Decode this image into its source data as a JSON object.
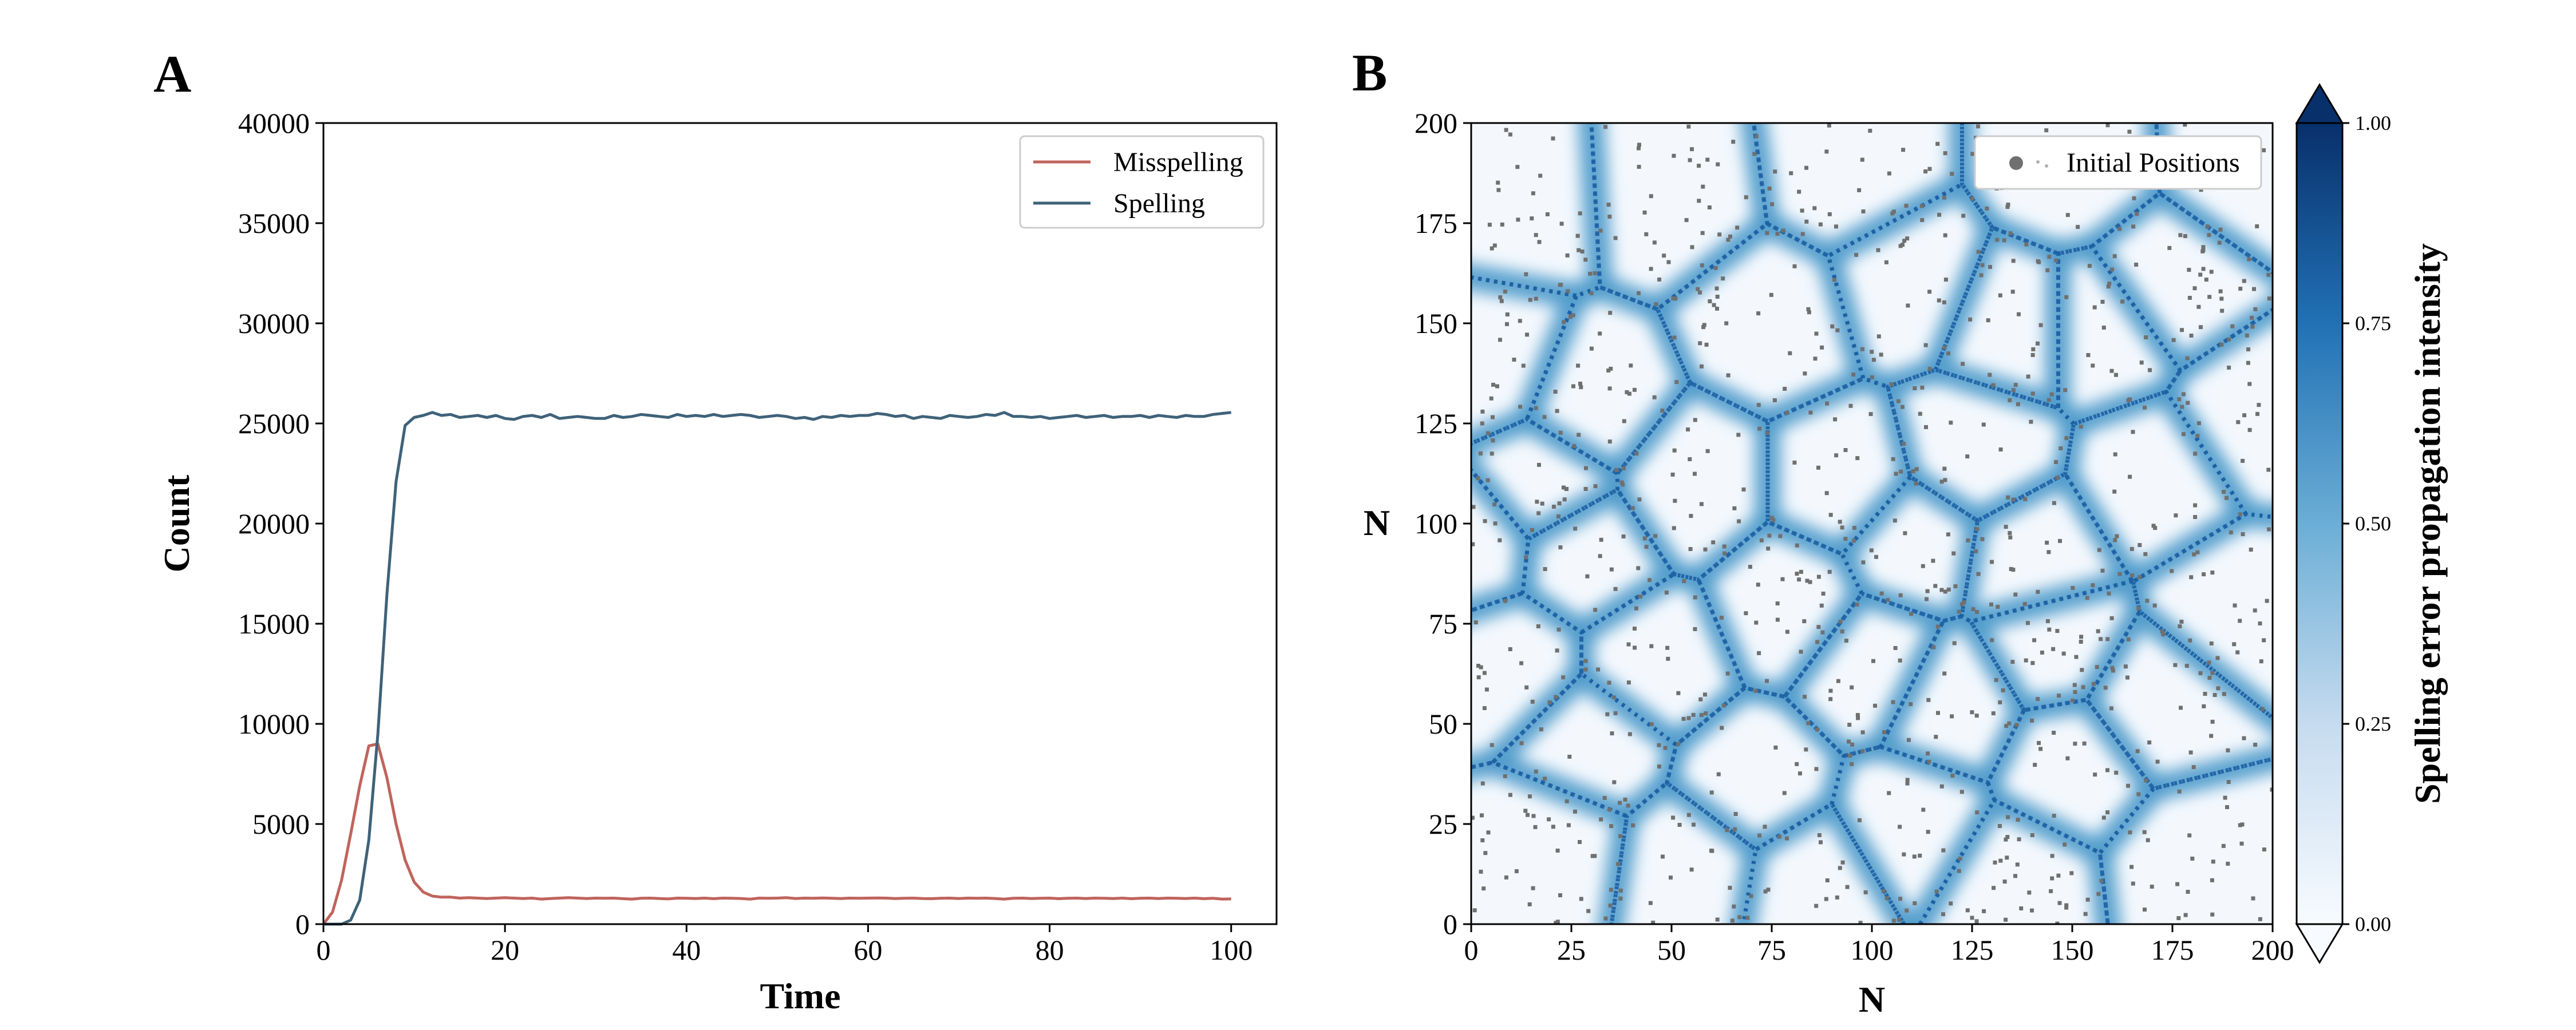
{
  "panels": {
    "a_label": "A",
    "b_label": "B"
  },
  "chart_data": [
    {
      "type": "line",
      "panel": "A",
      "xlabel": "Time",
      "ylabel": "Count",
      "xlim": [
        0,
        105
      ],
      "ylim": [
        0,
        40000
      ],
      "xticks": [
        0,
        20,
        40,
        60,
        80,
        100
      ],
      "yticks": [
        0,
        5000,
        10000,
        15000,
        20000,
        25000,
        30000,
        35000,
        40000
      ],
      "legend": "top-right",
      "grid": false,
      "x": [
        0,
        1,
        2,
        3,
        4,
        5,
        6,
        7,
        8,
        9,
        10,
        11,
        12,
        13,
        14,
        15,
        16,
        17,
        18,
        19,
        20,
        21,
        22,
        23,
        24,
        25,
        26,
        27,
        28,
        29,
        30,
        31,
        32,
        33,
        34,
        35,
        36,
        37,
        38,
        39,
        40,
        41,
        42,
        43,
        44,
        45,
        46,
        47,
        48,
        49,
        50,
        51,
        52,
        53,
        54,
        55,
        56,
        57,
        58,
        59,
        60,
        61,
        62,
        63,
        64,
        65,
        66,
        67,
        68,
        69,
        70,
        71,
        72,
        73,
        74,
        75,
        76,
        77,
        78,
        79,
        80,
        81,
        82,
        83,
        84,
        85,
        86,
        87,
        88,
        89,
        90,
        91,
        92,
        93,
        94,
        95,
        96,
        97,
        98,
        99,
        100
      ],
      "series": [
        {
          "name": "Misspelling",
          "color": "#c0645c",
          "values": [
            0,
            600,
            2200,
            4500,
            6900,
            8900,
            9000,
            7300,
            5000,
            3200,
            2100,
            1600,
            1400,
            1350,
            1350,
            1300,
            1320,
            1300,
            1280,
            1300,
            1320,
            1300,
            1280,
            1300,
            1250,
            1280,
            1300,
            1320,
            1300,
            1280,
            1300,
            1290,
            1300,
            1270,
            1250,
            1290,
            1300,
            1280,
            1260,
            1300,
            1290,
            1280,
            1300,
            1270,
            1300,
            1290,
            1280,
            1250,
            1300,
            1290,
            1300,
            1320,
            1280,
            1300,
            1290,
            1310,
            1290,
            1280,
            1300,
            1290,
            1300,
            1310,
            1300,
            1280,
            1290,
            1300,
            1280,
            1270,
            1290,
            1300,
            1280,
            1300,
            1290,
            1300,
            1280,
            1250,
            1290,
            1300,
            1280,
            1290,
            1300,
            1270,
            1290,
            1300,
            1280,
            1300,
            1290,
            1280,
            1300,
            1270,
            1290,
            1300,
            1280,
            1300,
            1290,
            1280,
            1300,
            1270,
            1290,
            1250,
            1260
          ]
        },
        {
          "name": "Spelling",
          "color": "#3e6279",
          "values": [
            0,
            0,
            0,
            200,
            1200,
            4200,
            9500,
            16500,
            22100,
            24900,
            25300,
            25400,
            25550,
            25400,
            25450,
            25300,
            25350,
            25400,
            25300,
            25400,
            25250,
            25200,
            25350,
            25400,
            25300,
            25450,
            25250,
            25300,
            25350,
            25300,
            25250,
            25250,
            25400,
            25300,
            25350,
            25450,
            25400,
            25350,
            25300,
            25450,
            25350,
            25400,
            25350,
            25450,
            25350,
            25400,
            25450,
            25400,
            25300,
            25350,
            25400,
            25350,
            25250,
            25300,
            25200,
            25350,
            25300,
            25400,
            25350,
            25400,
            25400,
            25500,
            25450,
            25350,
            25400,
            25250,
            25350,
            25300,
            25250,
            25400,
            25350,
            25300,
            25350,
            25450,
            25400,
            25550,
            25350,
            25350,
            25300,
            25350,
            25250,
            25300,
            25350,
            25400,
            25300,
            25350,
            25400,
            25300,
            25350,
            25350,
            25400,
            25300,
            25400,
            25350,
            25300,
            25400,
            25350,
            25350,
            25450,
            25500,
            25550
          ]
        }
      ]
    },
    {
      "type": "heatmap",
      "panel": "B",
      "xlabel": "N",
      "ylabel": "N",
      "xlim": [
        0,
        200
      ],
      "ylim": [
        0,
        200
      ],
      "xticks": [
        0,
        25,
        50,
        75,
        100,
        125,
        150,
        175,
        200
      ],
      "yticks": [
        0,
        25,
        50,
        75,
        100,
        125,
        150,
        175,
        200
      ],
      "legend": "top-right",
      "legend_entry": "Initial Positions",
      "colormap": "Blues",
      "point_color": "#707070",
      "colorbar": {
        "label": "Spelling error propagation intensity",
        "range": [
          0.0,
          1.0
        ],
        "ticks": [
          "0.00",
          "0.25",
          "0.50",
          "0.75",
          "1.00"
        ],
        "low_color": "#f7fbff",
        "mid_color": "#4f9bcb",
        "high_color": "#08306b"
      },
      "cell_centers": [
        [
          12,
          180
        ],
        [
          5,
          140
        ],
        [
          50,
          182
        ],
        [
          95,
          188
        ],
        [
          150,
          188
        ],
        [
          193,
          190
        ],
        [
          110,
          160
        ],
        [
          75,
          150
        ],
        [
          30,
          130
        ],
        [
          0,
          95
        ],
        [
          18,
          110
        ],
        [
          28,
          92
        ],
        [
          55,
          110
        ],
        [
          93,
          110
        ],
        [
          125,
          118
        ],
        [
          158,
          150
        ],
        [
          172,
          160
        ],
        [
          195,
          125
        ],
        [
          172,
          110
        ],
        [
          145,
          70
        ],
        [
          120,
          55
        ],
        [
          110,
          95
        ],
        [
          80,
          80
        ],
        [
          45,
          65
        ],
        [
          10,
          65
        ],
        [
          70,
          35
        ],
        [
          20,
          20
        ],
        [
          55,
          15
        ],
        [
          110,
          25
        ],
        [
          100,
          65
        ],
        [
          150,
          40
        ],
        [
          170,
          55
        ],
        [
          180,
          15
        ],
        [
          135,
          10
        ],
        [
          190,
          80
        ],
        [
          30,
          45
        ],
        [
          85,
          10
        ],
        [
          140,
          90
        ],
        [
          135,
          150
        ]
      ]
    }
  ]
}
